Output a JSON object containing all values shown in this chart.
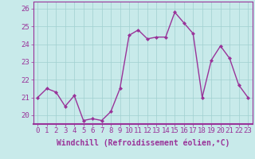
{
  "x": [
    0,
    1,
    2,
    3,
    4,
    5,
    6,
    7,
    8,
    9,
    10,
    11,
    12,
    13,
    14,
    15,
    16,
    17,
    18,
    19,
    20,
    21,
    22,
    23
  ],
  "y": [
    21.0,
    21.5,
    21.3,
    20.5,
    21.1,
    19.7,
    19.8,
    19.7,
    20.2,
    21.5,
    24.5,
    24.8,
    24.3,
    24.4,
    24.4,
    25.8,
    25.2,
    24.6,
    21.0,
    23.1,
    23.9,
    23.2,
    21.7,
    21.0
  ],
  "line_color": "#993399",
  "marker": "D",
  "marker_size": 2,
  "bg_color": "#c8eaea",
  "grid_color": "#a0d0d0",
  "xlabel": "Windchill (Refroidissement éolien,°C)",
  "xlabel_fontsize": 7,
  "ylim": [
    19.5,
    26.4
  ],
  "xlim": [
    -0.5,
    23.5
  ],
  "yticks": [
    20,
    21,
    22,
    23,
    24,
    25,
    26
  ],
  "xticks": [
    0,
    1,
    2,
    3,
    4,
    5,
    6,
    7,
    8,
    9,
    10,
    11,
    12,
    13,
    14,
    15,
    16,
    17,
    18,
    19,
    20,
    21,
    22,
    23
  ],
  "tick_fontsize": 6.5,
  "spine_color": "#993399",
  "linewidth": 1.0
}
